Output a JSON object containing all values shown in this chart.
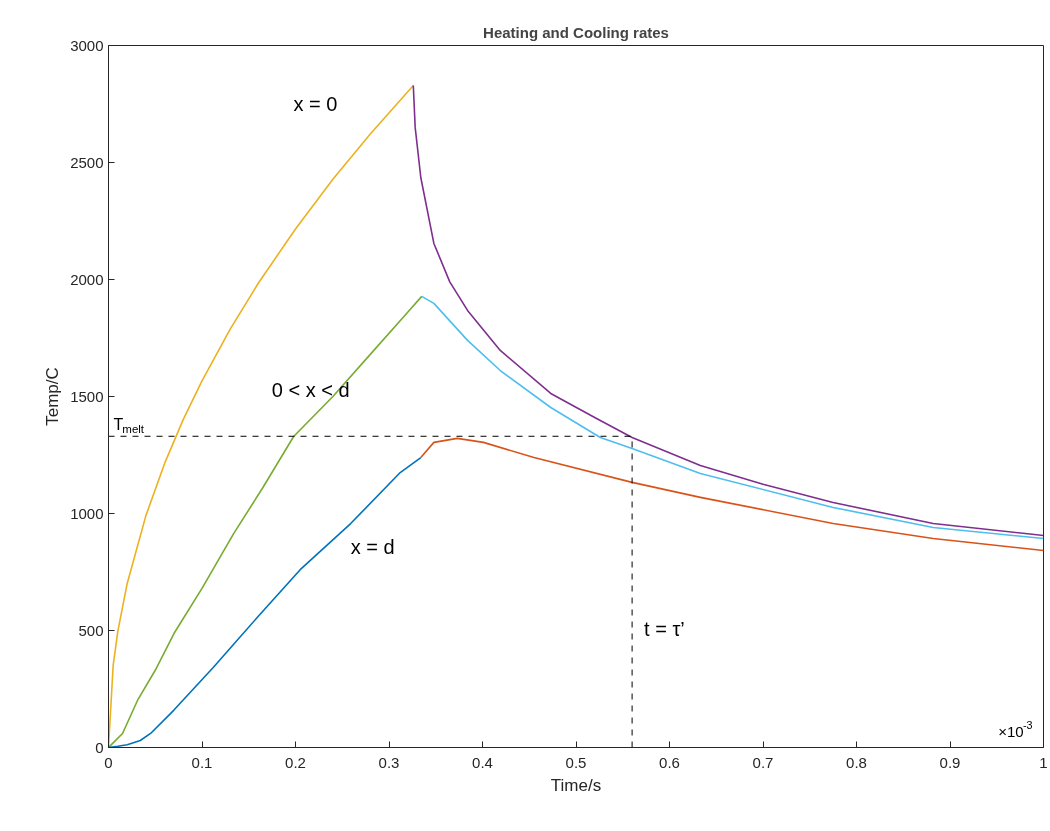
{
  "chart_data": {
    "type": "line",
    "title": "Heating and Cooling rates",
    "xlabel": "Time/s",
    "ylabel": "Temp/C",
    "xlim": [
      0,
      1
    ],
    "ylim": [
      0,
      3000
    ],
    "xticks": [
      0,
      0.1,
      0.2,
      0.3,
      0.4,
      0.5,
      0.6,
      0.7,
      0.8,
      0.9,
      1
    ],
    "yticks": [
      0,
      500,
      1000,
      1500,
      2000,
      2500,
      3000
    ],
    "grid": false,
    "line_style": "solid",
    "marker": "none",
    "series": [
      {
        "name": "x = 0",
        "color": "#edb120",
        "x": [
          0,
          0.005,
          0.01,
          0.02,
          0.04,
          0.06,
          0.08,
          0.1,
          0.13,
          0.16,
          0.2,
          0.24,
          0.28,
          0.326
        ],
        "values": [
          0,
          351,
          497,
          701,
          991,
          1214,
          1402,
          1567,
          1787,
          1983,
          2216,
          2428,
          2622,
          2829
        ]
      },
      {
        "color": "#7e2f8e",
        "x": [
          0.326,
          0.328,
          0.334,
          0.348,
          0.365,
          0.384,
          0.419,
          0.473,
          0.52,
          0.56,
          0.633,
          0.7,
          0.775,
          0.882,
          1.0
        ],
        "values": [
          2829,
          2650,
          2436,
          2154,
          1990,
          1868,
          1697,
          1513,
          1410,
          1325,
          1205,
          1125,
          1047,
          957,
          906
        ]
      },
      {
        "name": "0 < x < d",
        "color": "#77ac30",
        "x": [
          0,
          0.005,
          0.015,
          0.031,
          0.05,
          0.07,
          0.1,
          0.134,
          0.165,
          0.198,
          0.24,
          0.28,
          0.32,
          0.335
        ],
        "values": [
          0,
          20,
          60,
          201,
          330,
          487,
          680,
          915,
          1110,
          1329,
          1500,
          1680,
          1860,
          1928
        ]
      },
      {
        "color": "#4dbeee",
        "x": [
          0.335,
          0.348,
          0.384,
          0.419,
          0.473,
          0.526,
          0.56,
          0.633,
          0.775,
          0.882,
          1.0
        ],
        "values": [
          1928,
          1898,
          1740,
          1611,
          1453,
          1325,
          1278,
          1171,
          1026,
          940,
          893
        ]
      },
      {
        "name": "x = d",
        "color": "#0072bd",
        "x": [
          0,
          0.01,
          0.02,
          0.034,
          0.045,
          0.07,
          0.112,
          0.16,
          0.205,
          0.259,
          0.312,
          0.334
        ],
        "values": [
          0,
          5,
          12,
          30,
          60,
          160,
          342,
          560,
          760,
          957,
          1175,
          1239
        ]
      },
      {
        "color": "#d95319",
        "x": [
          0.334,
          0.348,
          0.373,
          0.401,
          0.455,
          0.56,
          0.633,
          0.775,
          0.882,
          1.0
        ],
        "values": [
          1239,
          1304,
          1321,
          1304,
          1239,
          1133,
          1069,
          957,
          893,
          842
        ]
      }
    ],
    "ref_lines": [
      {
        "axis": "y",
        "value": 1330,
        "label": "T$_{melt}$",
        "color": "#000000",
        "line_style": "dashed"
      },
      {
        "axis": "x",
        "value": 0.56,
        "label": "t = τ’",
        "color": "#000000",
        "line_style": "dashed"
      }
    ],
    "annotations": [
      "×10$^{-3}$"
    ]
  }
}
